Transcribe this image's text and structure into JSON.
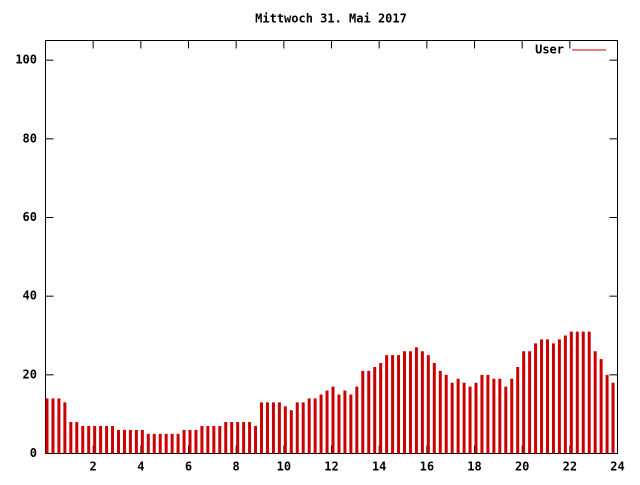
{
  "chart_data": {
    "type": "impulse",
    "title": "Mittwoch 31. Mai 2017",
    "x": [
      0,
      0.25,
      0.5,
      0.75,
      1,
      1.25,
      1.5,
      1.75,
      2,
      2.25,
      2.5,
      2.75,
      3,
      3.25,
      3.5,
      3.75,
      4,
      4.25,
      4.5,
      4.75,
      5,
      5.25,
      5.5,
      5.75,
      6,
      6.25,
      6.5,
      6.75,
      7,
      7.25,
      7.5,
      7.75,
      8,
      8.25,
      8.5,
      8.75,
      9,
      9.25,
      9.5,
      9.75,
      10,
      10.25,
      10.5,
      10.75,
      11,
      11.25,
      11.5,
      11.75,
      12,
      12.25,
      12.5,
      12.75,
      13,
      13.25,
      13.5,
      13.75,
      14,
      14.25,
      14.5,
      14.75,
      15,
      15.25,
      15.5,
      15.75,
      16,
      16.25,
      16.5,
      16.75,
      17,
      17.25,
      17.5,
      17.75,
      18,
      18.25,
      18.5,
      18.75,
      19,
      19.25,
      19.5,
      19.75,
      20,
      20.25,
      20.5,
      20.75,
      21,
      21.25,
      21.5,
      21.75,
      22,
      22.25,
      22.5,
      22.75,
      23,
      23.25,
      23.5,
      23.75
    ],
    "series": [
      {
        "name": "User",
        "color": "#cc0000",
        "values": [
          14,
          14,
          14,
          13,
          8,
          8,
          7,
          7,
          7,
          7,
          7,
          7,
          6,
          6,
          6,
          6,
          6,
          5,
          5,
          5,
          5,
          5,
          5,
          6,
          6,
          6,
          7,
          7,
          7,
          7,
          8,
          8,
          8,
          8,
          8,
          7,
          13,
          13,
          13,
          13,
          12,
          11,
          13,
          13,
          14,
          14,
          15,
          16,
          17,
          15,
          16,
          15,
          17,
          21,
          21,
          22,
          23,
          25,
          25,
          25,
          26,
          26,
          27,
          26,
          25,
          23,
          21,
          20,
          18,
          19,
          18,
          17,
          18,
          20,
          20,
          19,
          19,
          17,
          19,
          22,
          26,
          26,
          28,
          29,
          29,
          28,
          29,
          30,
          31,
          31,
          31,
          31,
          26,
          24,
          20,
          18
        ]
      }
    ],
    "xlim": [
      0,
      24
    ],
    "xticks": [
      2,
      4,
      6,
      8,
      10,
      12,
      14,
      16,
      18,
      20,
      22,
      24
    ],
    "ylim": [
      0,
      105
    ],
    "yticks": [
      0,
      20,
      40,
      60,
      80,
      100
    ],
    "legend": "top-right"
  }
}
